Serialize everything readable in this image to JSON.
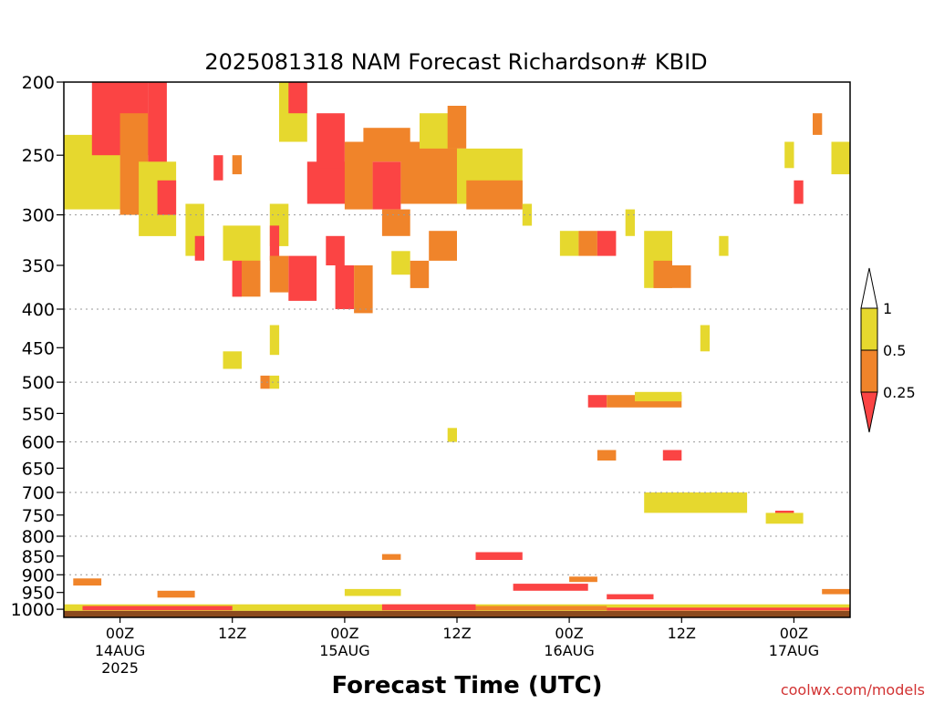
{
  "chart_data": {
    "type": "heatmap",
    "title": "2025081318 NAM Forecast Richardson# KBID",
    "xlabel": "Forecast Time (UTC)",
    "ylabel": "",
    "credit": "coolwx.com/models",
    "y_axis": {
      "scale": "log-pressure",
      "ylim_hPa": [
        1025,
        200
      ],
      "tick_labels": [
        "200",
        "250",
        "300",
        "350",
        "400",
        "450",
        "500",
        "550",
        "600",
        "650",
        "700",
        "750",
        "800",
        "850",
        "900",
        "950",
        "1000"
      ],
      "tick_values": [
        200,
        250,
        300,
        350,
        400,
        450,
        500,
        550,
        600,
        650,
        700,
        750,
        800,
        850,
        900,
        950,
        1000
      ],
      "dotted_grid_at": [
        300,
        400,
        500,
        600,
        700,
        800,
        900
      ]
    },
    "x_axis": {
      "start": "2025-08-13 18Z",
      "end": "2025-08-17 06Z",
      "tick_labels": [
        {
          "time": "2025-08-14 00Z",
          "lines": [
            "00Z",
            "14AUG",
            "2025"
          ]
        },
        {
          "time": "2025-08-14 12Z",
          "lines": [
            "12Z"
          ]
        },
        {
          "time": "2025-08-15 00Z",
          "lines": [
            "00Z",
            "15AUG"
          ]
        },
        {
          "time": "2025-08-15 12Z",
          "lines": [
            "12Z"
          ]
        },
        {
          "time": "2025-08-16 00Z",
          "lines": [
            "00Z",
            "16AUG"
          ]
        },
        {
          "time": "2025-08-16 12Z",
          "lines": [
            "12Z"
          ]
        },
        {
          "time": "2025-08-17 00Z",
          "lines": [
            "00Z",
            "17AUG"
          ]
        }
      ]
    },
    "legend": {
      "placement": "right",
      "labels": [
        "1",
        "0.5",
        "0.25"
      ],
      "bins": [
        {
          "range": "above 1",
          "color": "#ffffff"
        },
        {
          "range": "0.5 - 1",
          "color": "#e6d82e"
        },
        {
          "range": "0.25 - 0.5",
          "color": "#f0842a"
        },
        {
          "range": "below 0.25",
          "color": "#fb4444"
        }
      ]
    },
    "colors": {
      "yellow": "#e6d82e",
      "orange": "#f0842a",
      "red": "#fb4444",
      "ground": "#8b4a1e"
    },
    "ground_level_hPa": 1005,
    "regions": [
      {
        "t": [
          "2025-08-13 18Z",
          "2025-08-14 00Z"
        ],
        "p": [
          235,
          295
        ],
        "c": "yellow"
      },
      {
        "t": [
          "2025-08-13 21Z",
          "2025-08-14 03Z"
        ],
        "p": [
          200,
          250
        ],
        "c": "red"
      },
      {
        "t": [
          "2025-08-14 00Z",
          "2025-08-14 03Z"
        ],
        "p": [
          220,
          300
        ],
        "c": "orange"
      },
      {
        "t": [
          "2025-08-14 03Z",
          "2025-08-14 05Z"
        ],
        "p": [
          200,
          260
        ],
        "c": "red"
      },
      {
        "t": [
          "2025-08-14 02Z",
          "2025-08-14 06Z"
        ],
        "p": [
          255,
          320
        ],
        "c": "yellow"
      },
      {
        "t": [
          "2025-08-14 04Z",
          "2025-08-14 06Z"
        ],
        "p": [
          270,
          300
        ],
        "c": "red"
      },
      {
        "t": [
          "2025-08-14 07Z",
          "2025-08-14 09Z"
        ],
        "p": [
          290,
          340
        ],
        "c": "yellow"
      },
      {
        "t": [
          "2025-08-14 08Z",
          "2025-08-14 09Z"
        ],
        "p": [
          320,
          345
        ],
        "c": "red"
      },
      {
        "t": [
          "2025-08-14 10Z",
          "2025-08-14 11Z"
        ],
        "p": [
          250,
          270
        ],
        "c": "red"
      },
      {
        "t": [
          "2025-08-14 12Z",
          "2025-08-14 13Z"
        ],
        "p": [
          250,
          265
        ],
        "c": "orange"
      },
      {
        "t": [
          "2025-08-14 12Z",
          "2025-08-14 15Z"
        ],
        "p": [
          335,
          385
        ],
        "c": "orange"
      },
      {
        "t": [
          "2025-08-14 12Z",
          "2025-08-14 13Z"
        ],
        "p": [
          345,
          385
        ],
        "c": "red"
      },
      {
        "t": [
          "2025-08-14 11Z",
          "2025-08-14 15Z"
        ],
        "p": [
          310,
          345
        ],
        "c": "yellow"
      },
      {
        "t": [
          "2025-08-14 16Z",
          "2025-08-14 18Z"
        ],
        "p": [
          290,
          330
        ],
        "c": "yellow"
      },
      {
        "t": [
          "2025-08-14 16Z",
          "2025-08-14 17Z"
        ],
        "p": [
          310,
          345
        ],
        "c": "red"
      },
      {
        "t": [
          "2025-08-14 17Z",
          "2025-08-14 20Z"
        ],
        "p": [
          200,
          240
        ],
        "c": "yellow"
      },
      {
        "t": [
          "2025-08-14 18Z",
          "2025-08-14 20Z"
        ],
        "p": [
          200,
          220
        ],
        "c": "red"
      },
      {
        "t": [
          "2025-08-14 18Z",
          "2025-08-14 21Z"
        ],
        "p": [
          340,
          390
        ],
        "c": "red"
      },
      {
        "t": [
          "2025-08-14 16Z",
          "2025-08-14 18Z"
        ],
        "p": [
          340,
          380
        ],
        "c": "orange"
      },
      {
        "t": [
          "2025-08-14 20Z",
          "2025-08-15 01Z"
        ],
        "p": [
          255,
          290
        ],
        "c": "red"
      },
      {
        "t": [
          "2025-08-14 21Z",
          "2025-08-15 00Z"
        ],
        "p": [
          220,
          260
        ],
        "c": "red"
      },
      {
        "t": [
          "2025-08-14 22Z",
          "2025-08-15 00Z"
        ],
        "p": [
          320,
          350
        ],
        "c": "red"
      },
      {
        "t": [
          "2025-08-14 23Z",
          "2025-08-15 01Z"
        ],
        "p": [
          350,
          400
        ],
        "c": "red"
      },
      {
        "t": [
          "2025-08-15 01Z",
          "2025-08-15 03Z"
        ],
        "p": [
          350,
          405
        ],
        "c": "orange"
      },
      {
        "t": [
          "2025-08-15 00Z",
          "2025-08-15 03Z"
        ],
        "p": [
          240,
          295
        ],
        "c": "orange"
      },
      {
        "t": [
          "2025-08-15 03Z",
          "2025-08-15 06Z"
        ],
        "p": [
          255,
          295
        ],
        "c": "red"
      },
      {
        "t": [
          "2025-08-15 02Z",
          "2025-08-15 07Z"
        ],
        "p": [
          230,
          255
        ],
        "c": "orange"
      },
      {
        "t": [
          "2025-08-15 04Z",
          "2025-08-15 07Z"
        ],
        "p": [
          295,
          320
        ],
        "c": "orange"
      },
      {
        "t": [
          "2025-08-15 05Z",
          "2025-08-15 07Z"
        ],
        "p": [
          335,
          360
        ],
        "c": "yellow"
      },
      {
        "t": [
          "2025-08-15 06Z",
          "2025-08-15 12Z"
        ],
        "p": [
          240,
          290
        ],
        "c": "orange"
      },
      {
        "t": [
          "2025-08-15 08Z",
          "2025-08-15 12Z"
        ],
        "p": [
          220,
          245
        ],
        "c": "yellow"
      },
      {
        "t": [
          "2025-08-15 11Z",
          "2025-08-15 13Z"
        ],
        "p": [
          215,
          245
        ],
        "c": "orange"
      },
      {
        "t": [
          "2025-08-15 12Z",
          "2025-08-15 19Z"
        ],
        "p": [
          245,
          290
        ],
        "c": "yellow"
      },
      {
        "t": [
          "2025-08-15 13Z",
          "2025-08-15 19Z"
        ],
        "p": [
          270,
          295
        ],
        "c": "orange"
      },
      {
        "t": [
          "2025-08-15 09Z",
          "2025-08-15 12Z"
        ],
        "p": [
          315,
          345
        ],
        "c": "orange"
      },
      {
        "t": [
          "2025-08-15 07Z",
          "2025-08-15 09Z"
        ],
        "p": [
          345,
          375
        ],
        "c": "orange"
      },
      {
        "t": [
          "2025-08-15 19Z",
          "2025-08-15 20Z"
        ],
        "p": [
          290,
          310
        ],
        "c": "yellow"
      },
      {
        "t": [
          "2025-08-15 23Z",
          "2025-08-16 01Z"
        ],
        "p": [
          315,
          340
        ],
        "c": "yellow"
      },
      {
        "t": [
          "2025-08-16 01Z",
          "2025-08-16 03Z"
        ],
        "p": [
          315,
          340
        ],
        "c": "orange"
      },
      {
        "t": [
          "2025-08-16 03Z",
          "2025-08-16 05Z"
        ],
        "p": [
          315,
          340
        ],
        "c": "red"
      },
      {
        "t": [
          "2025-08-16 06Z",
          "2025-08-16 07Z"
        ],
        "p": [
          295,
          320
        ],
        "c": "yellow"
      },
      {
        "t": [
          "2025-08-16 08Z",
          "2025-08-16 11Z"
        ],
        "p": [
          315,
          375
        ],
        "c": "yellow"
      },
      {
        "t": [
          "2025-08-16 09Z",
          "2025-08-16 11Z"
        ],
        "p": [
          345,
          375
        ],
        "c": "orange"
      },
      {
        "t": [
          "2025-08-16 11Z",
          "2025-08-16 13Z"
        ],
        "p": [
          350,
          375
        ],
        "c": "orange"
      },
      {
        "t": [
          "2025-08-16 14Z",
          "2025-08-16 15Z"
        ],
        "p": [
          420,
          455
        ],
        "c": "yellow"
      },
      {
        "t": [
          "2025-08-16 16Z",
          "2025-08-16 17Z"
        ],
        "p": [
          320,
          340
        ],
        "c": "yellow"
      },
      {
        "t": [
          "2025-08-16 23Z",
          "2025-08-17 00Z"
        ],
        "p": [
          240,
          260
        ],
        "c": "yellow"
      },
      {
        "t": [
          "2025-08-17 02Z",
          "2025-08-17 03Z"
        ],
        "p": [
          220,
          235
        ],
        "c": "orange"
      },
      {
        "t": [
          "2025-08-17 00Z",
          "2025-08-17 01Z"
        ],
        "p": [
          270,
          290
        ],
        "c": "red"
      },
      {
        "t": [
          "2025-08-17 04Z",
          "2025-08-17 06Z"
        ],
        "p": [
          240,
          265
        ],
        "c": "yellow"
      },
      {
        "t": [
          "2025-08-14 11Z",
          "2025-08-14 13Z"
        ],
        "p": [
          455,
          480
        ],
        "c": "yellow"
      },
      {
        "t": [
          "2025-08-14 16Z",
          "2025-08-14 17Z"
        ],
        "p": [
          420,
          460
        ],
        "c": "yellow"
      },
      {
        "t": [
          "2025-08-14 15Z",
          "2025-08-14 16Z"
        ],
        "p": [
          490,
          510
        ],
        "c": "orange"
      },
      {
        "t": [
          "2025-08-14 16Z",
          "2025-08-14 17Z"
        ],
        "p": [
          490,
          510
        ],
        "c": "yellow"
      },
      {
        "t": [
          "2025-08-16 02Z",
          "2025-08-16 04Z"
        ],
        "p": [
          520,
          540
        ],
        "c": "red"
      },
      {
        "t": [
          "2025-08-16 04Z",
          "2025-08-16 12Z"
        ],
        "p": [
          520,
          540
        ],
        "c": "orange"
      },
      {
        "t": [
          "2025-08-16 07Z",
          "2025-08-16 12Z"
        ],
        "p": [
          515,
          530
        ],
        "c": "yellow"
      },
      {
        "t": [
          "2025-08-15 11Z",
          "2025-08-15 12Z"
        ],
        "p": [
          575,
          600
        ],
        "c": "yellow"
      },
      {
        "t": [
          "2025-08-16 03Z",
          "2025-08-16 05Z"
        ],
        "p": [
          615,
          635
        ],
        "c": "orange"
      },
      {
        "t": [
          "2025-08-16 10Z",
          "2025-08-16 12Z"
        ],
        "p": [
          615,
          635
        ],
        "c": "red"
      },
      {
        "t": [
          "2025-08-16 10Z",
          "2025-08-16 15Z"
        ],
        "p": [
          705,
          725
        ],
        "c": "orange"
      },
      {
        "t": [
          "2025-08-16 13Z",
          "2025-08-16 16Z"
        ],
        "p": [
          705,
          725
        ],
        "c": "red"
      },
      {
        "t": [
          "2025-08-16 08Z",
          "2025-08-16 19Z"
        ],
        "p": [
          700,
          745
        ],
        "c": "yellow"
      },
      {
        "t": [
          "2025-08-16 22Z",
          "2025-08-17 00Z"
        ],
        "p": [
          740,
          765
        ],
        "c": "red"
      },
      {
        "t": [
          "2025-08-16 21Z",
          "2025-08-17 01Z"
        ],
        "p": [
          745,
          770
        ],
        "c": "yellow"
      },
      {
        "t": [
          "2025-08-15 04Z",
          "2025-08-15 06Z"
        ],
        "p": [
          845,
          860
        ],
        "c": "orange"
      },
      {
        "t": [
          "2025-08-15 14Z",
          "2025-08-15 19Z"
        ],
        "p": [
          840,
          860
        ],
        "c": "red"
      },
      {
        "t": [
          "2025-08-15 18Z",
          "2025-08-16 02Z"
        ],
        "p": [
          925,
          945
        ],
        "c": "red"
      },
      {
        "t": [
          "2025-08-16 00Z",
          "2025-08-16 03Z"
        ],
        "p": [
          905,
          920
        ],
        "c": "orange"
      },
      {
        "t": [
          "2025-08-16 04Z",
          "2025-08-16 09Z"
        ],
        "p": [
          955,
          970
        ],
        "c": "red"
      },
      {
        "t": [
          "2025-08-14 04Z",
          "2025-08-14 08Z"
        ],
        "p": [
          945,
          965
        ],
        "c": "orange"
      },
      {
        "t": [
          "2025-08-13 19Z",
          "2025-08-13 22Z"
        ],
        "p": [
          910,
          930
        ],
        "c": "orange"
      },
      {
        "t": [
          "2025-08-15 00Z",
          "2025-08-15 06Z"
        ],
        "p": [
          940,
          960
        ],
        "c": "yellow"
      },
      {
        "t": [
          "2025-08-17 03Z",
          "2025-08-17 06Z"
        ],
        "p": [
          940,
          955
        ],
        "c": "orange"
      },
      {
        "t": [
          "2025-08-13 18Z",
          "2025-08-17 06Z"
        ],
        "p": [
          985,
          1005
        ],
        "c": "yellow"
      },
      {
        "t": [
          "2025-08-13 20Z",
          "2025-08-14 12Z"
        ],
        "p": [
          990,
          1003
        ],
        "c": "red"
      },
      {
        "t": [
          "2025-08-15 04Z",
          "2025-08-15 14Z"
        ],
        "p": [
          985,
          1003
        ],
        "c": "red"
      },
      {
        "t": [
          "2025-08-15 14Z",
          "2025-08-16 04Z"
        ],
        "p": [
          990,
          1003
        ],
        "c": "orange"
      },
      {
        "t": [
          "2025-08-16 04Z",
          "2025-08-17 06Z"
        ],
        "p": [
          995,
          1004
        ],
        "c": "red"
      }
    ]
  }
}
